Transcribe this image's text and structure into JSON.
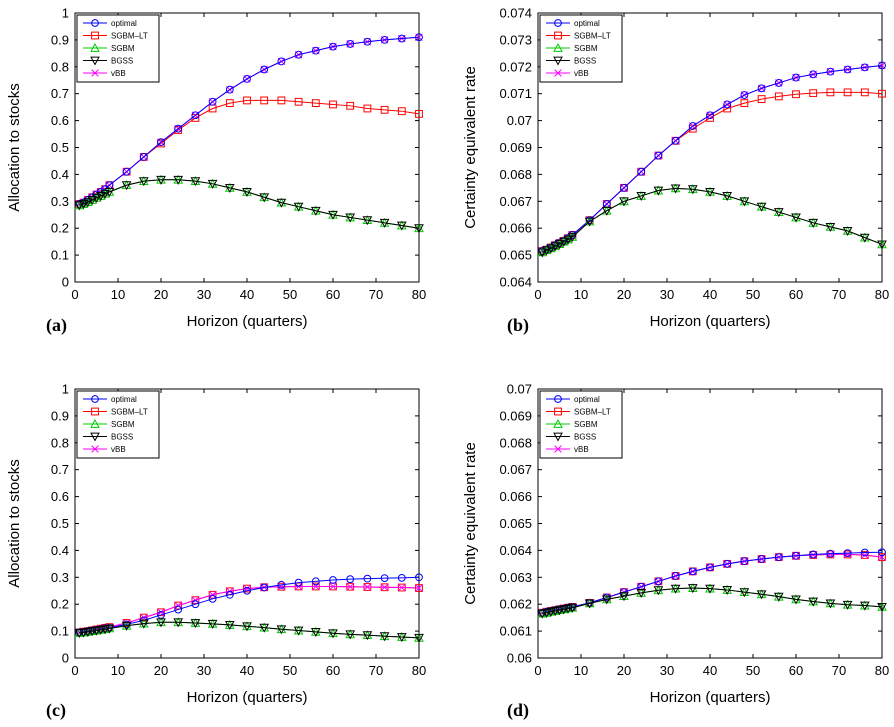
{
  "chart_data": [
    {
      "panel": "(a)",
      "type": "line",
      "xlabel": "Horizon (quarters)",
      "ylabel": "Allocation to stocks",
      "xlim": [
        0,
        80
      ],
      "ylim": [
        0,
        1
      ],
      "xticks": [
        "0",
        "10",
        "20",
        "30",
        "40",
        "50",
        "60",
        "70",
        "80"
      ],
      "yticks": [
        "0",
        "0.1",
        "0.2",
        "0.3",
        "0.4",
        "0.5",
        "0.6",
        "0.7",
        "0.8",
        "0.9",
        "1"
      ],
      "legend": "top-left",
      "grid": false,
      "x": [
        1,
        2,
        3,
        4,
        5,
        6,
        7,
        8,
        12,
        16,
        20,
        24,
        28,
        32,
        36,
        40,
        44,
        48,
        52,
        56,
        60,
        64,
        68,
        72,
        76,
        80
      ],
      "series": [
        {
          "name": "optimal",
          "color": "#0000ff",
          "marker": "circle",
          "values": [
            0.29,
            0.295,
            0.305,
            0.315,
            0.325,
            0.335,
            0.345,
            0.36,
            0.41,
            0.465,
            0.52,
            0.57,
            0.62,
            0.67,
            0.715,
            0.755,
            0.79,
            0.82,
            0.845,
            0.86,
            0.875,
            0.885,
            0.893,
            0.9,
            0.905,
            0.91
          ]
        },
        {
          "name": "SGBM–LT",
          "color": "#ff0000",
          "marker": "square",
          "values": [
            0.29,
            0.295,
            0.305,
            0.315,
            0.325,
            0.335,
            0.345,
            0.36,
            0.41,
            0.465,
            0.515,
            0.565,
            0.61,
            0.645,
            0.665,
            0.675,
            0.675,
            0.675,
            0.67,
            0.665,
            0.66,
            0.655,
            0.645,
            0.64,
            0.635,
            0.625
          ]
        },
        {
          "name": "SGBM",
          "color": "#00cc00",
          "marker": "triangle-up",
          "values": [
            0.285,
            0.29,
            0.297,
            0.305,
            0.313,
            0.32,
            0.328,
            0.335,
            0.36,
            0.375,
            0.38,
            0.38,
            0.375,
            0.365,
            0.35,
            0.335,
            0.315,
            0.295,
            0.28,
            0.265,
            0.25,
            0.24,
            0.23,
            0.22,
            0.21,
            0.2
          ]
        },
        {
          "name": "BGSS",
          "color": "#000000",
          "marker": "triangle-down",
          "values": [
            0.285,
            0.29,
            0.297,
            0.305,
            0.313,
            0.32,
            0.328,
            0.335,
            0.36,
            0.375,
            0.38,
            0.38,
            0.375,
            0.365,
            0.35,
            0.335,
            0.315,
            0.295,
            0.28,
            0.265,
            0.25,
            0.24,
            0.23,
            0.22,
            0.21,
            0.2
          ]
        },
        {
          "name": "vBB",
          "color": "#ff00ff",
          "marker": "x",
          "values": [
            0.29,
            0.295,
            0.305,
            0.315,
            0.325,
            0.335,
            0.345,
            0.36,
            0.41,
            0.465,
            0.52,
            0.57,
            0.62,
            0.67,
            0.715,
            0.755,
            0.79,
            0.82,
            0.845,
            0.86,
            0.875,
            0.885,
            0.893,
            0.9,
            0.905,
            0.91
          ]
        }
      ]
    },
    {
      "panel": "(b)",
      "type": "line",
      "xlabel": "Horizon (quarters)",
      "ylabel": "Certainty equivalent rate",
      "xlim": [
        0,
        80
      ],
      "ylim": [
        0.064,
        0.074
      ],
      "xticks": [
        "0",
        "10",
        "20",
        "30",
        "40",
        "50",
        "60",
        "70",
        "80"
      ],
      "yticks": [
        "0.064",
        "0.065",
        "0.066",
        "0.067",
        "0.068",
        "0.069",
        "0.07",
        "0.071",
        "0.072",
        "0.073",
        "0.074"
      ],
      "legend": "top-left",
      "grid": false,
      "x": [
        1,
        2,
        3,
        4,
        5,
        6,
        7,
        8,
        12,
        16,
        20,
        24,
        28,
        32,
        36,
        40,
        44,
        48,
        52,
        56,
        60,
        64,
        68,
        72,
        76,
        80
      ],
      "series": [
        {
          "name": "optimal",
          "color": "#0000ff",
          "marker": "circle",
          "values": [
            0.06515,
            0.0652,
            0.06528,
            0.06537,
            0.06545,
            0.06553,
            0.06563,
            0.06575,
            0.0663,
            0.0669,
            0.0675,
            0.0681,
            0.0687,
            0.06925,
            0.0698,
            0.0702,
            0.0706,
            0.07095,
            0.0712,
            0.0714,
            0.0716,
            0.07172,
            0.07182,
            0.0719,
            0.07198,
            0.07205
          ]
        },
        {
          "name": "SGBM–LT",
          "color": "#ff0000",
          "marker": "square",
          "values": [
            0.06515,
            0.0652,
            0.06528,
            0.06537,
            0.06545,
            0.06553,
            0.06563,
            0.06575,
            0.0663,
            0.0669,
            0.0675,
            0.0681,
            0.0687,
            0.06925,
            0.0697,
            0.0701,
            0.07045,
            0.07065,
            0.0708,
            0.0709,
            0.07098,
            0.07102,
            0.07105,
            0.07105,
            0.07105,
            0.071
          ]
        },
        {
          "name": "SGBM",
          "color": "#00cc00",
          "marker": "triangle-up",
          "values": [
            0.0651,
            0.06518,
            0.06525,
            0.06533,
            0.06541,
            0.0655,
            0.06558,
            0.06568,
            0.06625,
            0.06665,
            0.067,
            0.0672,
            0.0674,
            0.06748,
            0.06745,
            0.06735,
            0.0672,
            0.067,
            0.0668,
            0.0666,
            0.0664,
            0.0662,
            0.06605,
            0.0659,
            0.06565,
            0.0654
          ]
        },
        {
          "name": "BGSS",
          "color": "#000000",
          "marker": "triangle-down",
          "values": [
            0.0651,
            0.06518,
            0.06525,
            0.06533,
            0.06541,
            0.0655,
            0.06558,
            0.06568,
            0.06625,
            0.06665,
            0.067,
            0.0672,
            0.0674,
            0.06748,
            0.06745,
            0.06735,
            0.0672,
            0.067,
            0.0668,
            0.0666,
            0.0664,
            0.0662,
            0.06605,
            0.0659,
            0.06565,
            0.0654
          ]
        },
        {
          "name": "vBB",
          "color": "#ff00ff",
          "marker": "x",
          "values": [
            0.06515,
            0.0652,
            0.06528,
            0.06537,
            0.06545,
            0.06553,
            0.06563,
            0.06575,
            0.0663,
            0.0669,
            0.0675,
            0.0681,
            0.0687,
            0.06925,
            0.0698,
            0.0702,
            0.0706,
            0.07095,
            0.0712,
            0.0714,
            0.0716,
            0.07172,
            0.07182,
            0.0719,
            0.07198,
            0.07205
          ]
        }
      ]
    },
    {
      "panel": "(c)",
      "type": "line",
      "xlabel": "Horizon (quarters)",
      "ylabel": "Allocation to stocks",
      "xlim": [
        0,
        80
      ],
      "ylim": [
        0,
        1
      ],
      "xticks": [
        "0",
        "10",
        "20",
        "30",
        "40",
        "50",
        "60",
        "70",
        "80"
      ],
      "yticks": [
        "0",
        "0.1",
        "0.2",
        "0.3",
        "0.4",
        "0.5",
        "0.6",
        "0.7",
        "0.8",
        "0.9",
        "1"
      ],
      "legend": "top-left",
      "grid": false,
      "x": [
        1,
        2,
        3,
        4,
        5,
        6,
        7,
        8,
        12,
        16,
        20,
        24,
        28,
        32,
        36,
        40,
        44,
        48,
        52,
        56,
        60,
        64,
        68,
        72,
        76,
        80
      ],
      "series": [
        {
          "name": "optimal",
          "color": "#0000ff",
          "marker": "circle",
          "values": [
            0.095,
            0.097,
            0.1,
            0.102,
            0.105,
            0.107,
            0.11,
            0.112,
            0.125,
            0.14,
            0.16,
            0.18,
            0.2,
            0.22,
            0.235,
            0.25,
            0.262,
            0.272,
            0.28,
            0.285,
            0.29,
            0.293,
            0.295,
            0.297,
            0.298,
            0.3
          ]
        },
        {
          "name": "SGBM–LT",
          "color": "#ff0000",
          "marker": "square",
          "values": [
            0.095,
            0.098,
            0.1,
            0.103,
            0.106,
            0.109,
            0.112,
            0.115,
            0.13,
            0.15,
            0.17,
            0.195,
            0.215,
            0.235,
            0.248,
            0.258,
            0.263,
            0.265,
            0.266,
            0.266,
            0.266,
            0.265,
            0.264,
            0.263,
            0.262,
            0.26
          ]
        },
        {
          "name": "SGBM",
          "color": "#00cc00",
          "marker": "triangle-up",
          "values": [
            0.093,
            0.095,
            0.097,
            0.1,
            0.102,
            0.105,
            0.107,
            0.11,
            0.12,
            0.128,
            0.133,
            0.133,
            0.13,
            0.127,
            0.123,
            0.118,
            0.113,
            0.107,
            0.102,
            0.097,
            0.092,
            0.088,
            0.085,
            0.081,
            0.078,
            0.075
          ]
        },
        {
          "name": "BGSS",
          "color": "#000000",
          "marker": "triangle-down",
          "values": [
            0.093,
            0.095,
            0.097,
            0.1,
            0.102,
            0.105,
            0.107,
            0.11,
            0.12,
            0.128,
            0.133,
            0.133,
            0.13,
            0.127,
            0.123,
            0.118,
            0.113,
            0.107,
            0.102,
            0.097,
            0.092,
            0.088,
            0.085,
            0.081,
            0.078,
            0.075
          ]
        },
        {
          "name": "vBB",
          "color": "#ff00ff",
          "marker": "x",
          "values": [
            0.095,
            0.098,
            0.1,
            0.103,
            0.106,
            0.109,
            0.112,
            0.115,
            0.13,
            0.15,
            0.17,
            0.195,
            0.215,
            0.235,
            0.248,
            0.258,
            0.263,
            0.265,
            0.266,
            0.266,
            0.266,
            0.265,
            0.264,
            0.263,
            0.262,
            0.26
          ]
        }
      ]
    },
    {
      "panel": "(d)",
      "type": "line",
      "xlabel": "Horizon (quarters)",
      "ylabel": "Certainty equivalent rate",
      "xlim": [
        0,
        80
      ],
      "ylim": [
        0.06,
        0.07
      ],
      "xticks": [
        "0",
        "10",
        "20",
        "30",
        "40",
        "50",
        "60",
        "70",
        "80"
      ],
      "yticks": [
        "0.06",
        "0.061",
        "0.062",
        "0.063",
        "0.064",
        "0.065",
        "0.066",
        "0.067",
        "0.068",
        "0.069",
        "0.07"
      ],
      "legend": "top-left",
      "grid": false,
      "x": [
        1,
        2,
        3,
        4,
        5,
        6,
        7,
        8,
        12,
        16,
        20,
        24,
        28,
        32,
        36,
        40,
        44,
        48,
        52,
        56,
        60,
        64,
        68,
        72,
        76,
        80
      ],
      "series": [
        {
          "name": "optimal",
          "color": "#0000ff",
          "marker": "circle",
          "values": [
            0.06168,
            0.06172,
            0.06175,
            0.06178,
            0.06181,
            0.06184,
            0.06187,
            0.0619,
            0.06205,
            0.06225,
            0.06245,
            0.06265,
            0.06285,
            0.06305,
            0.06322,
            0.06337,
            0.0635,
            0.0636,
            0.06368,
            0.06375,
            0.0638,
            0.06385,
            0.06388,
            0.0639,
            0.06392,
            0.06393
          ]
        },
        {
          "name": "SGBM–LT",
          "color": "#ff0000",
          "marker": "square",
          "values": [
            0.06168,
            0.06172,
            0.06175,
            0.06178,
            0.06181,
            0.06184,
            0.06187,
            0.0619,
            0.06205,
            0.06225,
            0.06245,
            0.06265,
            0.06285,
            0.06305,
            0.06322,
            0.06337,
            0.0635,
            0.0636,
            0.06368,
            0.06375,
            0.0638,
            0.06383,
            0.06385,
            0.06385,
            0.06383,
            0.06375
          ]
        },
        {
          "name": "SGBM",
          "color": "#00cc00",
          "marker": "triangle-up",
          "values": [
            0.06165,
            0.06168,
            0.06172,
            0.06175,
            0.06178,
            0.06181,
            0.06184,
            0.06187,
            0.06203,
            0.06218,
            0.0623,
            0.06242,
            0.06252,
            0.06258,
            0.0626,
            0.06258,
            0.06253,
            0.06245,
            0.06237,
            0.06228,
            0.06218,
            0.0621,
            0.06203,
            0.06198,
            0.06195,
            0.0619
          ]
        },
        {
          "name": "BGSS",
          "color": "#000000",
          "marker": "triangle-down",
          "values": [
            0.06165,
            0.06168,
            0.06172,
            0.06175,
            0.06178,
            0.06181,
            0.06184,
            0.06187,
            0.06203,
            0.06218,
            0.0623,
            0.06242,
            0.06252,
            0.06258,
            0.0626,
            0.06258,
            0.06253,
            0.06245,
            0.06237,
            0.06228,
            0.06218,
            0.0621,
            0.06203,
            0.06198,
            0.06195,
            0.0619
          ]
        },
        {
          "name": "vBB",
          "color": "#ff00ff",
          "marker": "x",
          "values": [
            0.06168,
            0.06172,
            0.06175,
            0.06178,
            0.06181,
            0.06184,
            0.06187,
            0.0619,
            0.06205,
            0.06225,
            0.06245,
            0.06265,
            0.06285,
            0.06305,
            0.06322,
            0.06337,
            0.0635,
            0.0636,
            0.06368,
            0.06375,
            0.0638,
            0.06383,
            0.06385,
            0.06385,
            0.06383,
            0.06375
          ]
        }
      ]
    }
  ]
}
